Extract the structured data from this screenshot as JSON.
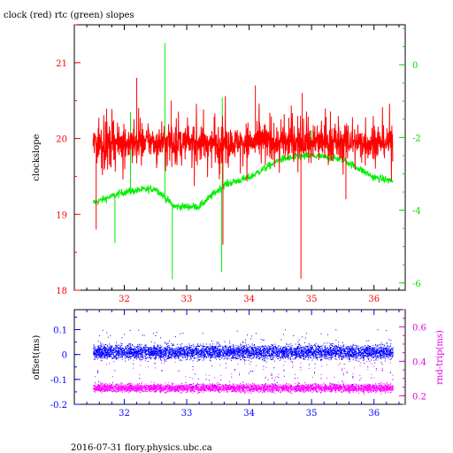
{
  "title": "clock (red) rtc (green) slopes",
  "footer": "2016-07-31 flory.physics.ubc.ca",
  "colors": {
    "frame": "#000000",
    "left_axis_top": "#ff0000",
    "right_axis_top": "#00dd00",
    "bottom_axis": "#0000ff",
    "left_axis_bottom": "#0000ff",
    "right_axis_bottom": "#dd00dd",
    "clock_series": "#ff0000",
    "rtc_series": "#00ee00",
    "offset_series": "#0000ff",
    "roundtrip_series": "#ff00ff"
  },
  "chart_data": [
    {
      "type": "line",
      "title": "clock (red) rtc (green) slopes",
      "xlim": [
        31.2,
        36.5
      ],
      "x_ticks": [
        "32",
        "33",
        "34",
        "35",
        "36"
      ],
      "ylabel": "clockslope",
      "ylim": [
        18,
        21.5
      ],
      "y_ticks": [
        "18",
        "19",
        "20",
        "21"
      ],
      "y2lim": [
        -6.2,
        1.1
      ],
      "y2_ticks": [
        "-6",
        "-4",
        "-2",
        "0"
      ],
      "series": [
        {
          "name": "clock (red)",
          "axis": "left",
          "x_range": [
            31.5,
            36.3
          ],
          "typical_value": 19.95,
          "noise_band": [
            19.6,
            20.3
          ],
          "excursions": [
            [
              31.55,
              18.8
            ],
            [
              32.2,
              20.8
            ],
            [
              32.75,
              20.5
            ],
            [
              33.58,
              18.6
            ],
            [
              34.1,
              20.7
            ],
            [
              34.83,
              18.15
            ],
            [
              34.85,
              20.6
            ],
            [
              35.55,
              19.2
            ]
          ]
        },
        {
          "name": "rtc (green)",
          "axis": "right",
          "x_range": [
            31.5,
            36.3
          ],
          "trend": [
            [
              31.5,
              -3.8
            ],
            [
              32.0,
              -3.5
            ],
            [
              32.5,
              -3.4
            ],
            [
              32.8,
              -3.9
            ],
            [
              33.2,
              -3.9
            ],
            [
              33.6,
              -3.3
            ],
            [
              34.0,
              -3.1
            ],
            [
              34.5,
              -2.6
            ],
            [
              35.0,
              -2.5
            ],
            [
              35.5,
              -2.6
            ],
            [
              36.0,
              -3.1
            ],
            [
              36.3,
              -3.2
            ]
          ],
          "spikes": [
            [
              31.85,
              -4.9
            ],
            [
              32.1,
              -1.3
            ],
            [
              32.65,
              0.6
            ],
            [
              32.77,
              -5.9
            ],
            [
              33.56,
              -5.7
            ],
            [
              33.57,
              -0.9
            ],
            [
              35.0,
              -1.8
            ]
          ]
        }
      ]
    },
    {
      "type": "scatter",
      "xlim": [
        31.2,
        36.5
      ],
      "x_ticks": [
        "32",
        "33",
        "34",
        "35",
        "36"
      ],
      "ylabel": "offset(ms)",
      "ylim": [
        -0.2,
        0.18
      ],
      "y_ticks": [
        "0.1",
        "0",
        "-0.1",
        "-0.2"
      ],
      "y2label": "rnd-trip(ms)",
      "y2lim": [
        0.15,
        0.7
      ],
      "y2_ticks": [
        "0.6",
        "0.4",
        "0.2"
      ],
      "series": [
        {
          "name": "offset(ms)",
          "axis": "left",
          "x_range": [
            31.5,
            36.3
          ],
          "band": [
            -0.02,
            0.04
          ],
          "sparse_outliers": [
            -0.13,
            0.1
          ]
        },
        {
          "name": "rnd-trip(ms)",
          "axis": "right",
          "x_range": [
            31.5,
            36.3
          ],
          "band": [
            0.22,
            0.27
          ],
          "sparse_outliers": [
            0.3,
            0.45
          ]
        }
      ]
    }
  ]
}
